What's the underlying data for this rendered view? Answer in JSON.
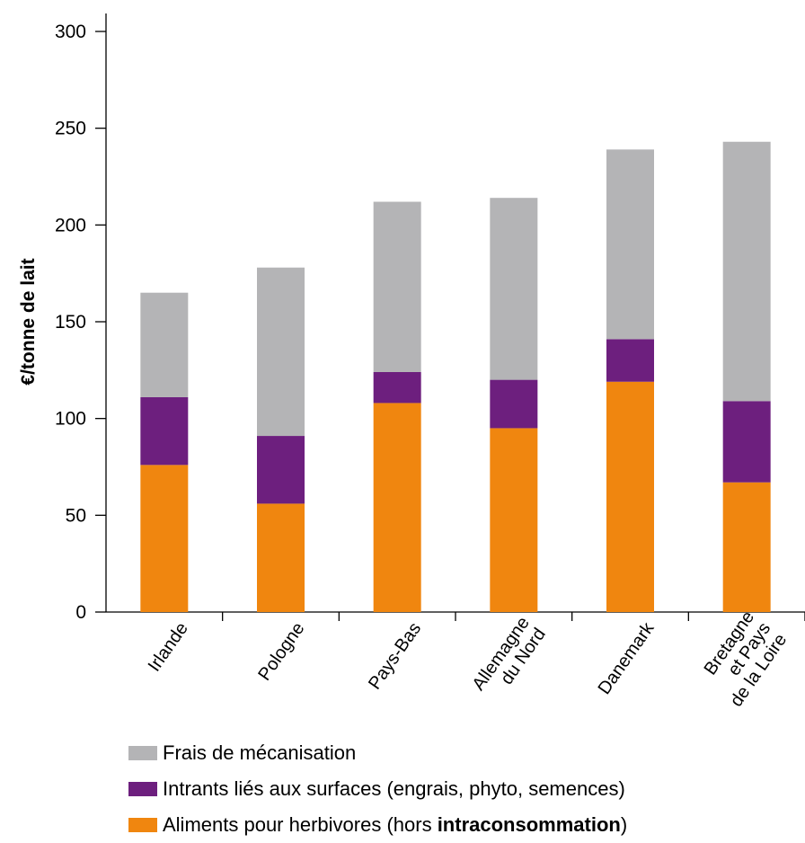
{
  "chart_data": {
    "type": "bar",
    "stacked": true,
    "ylabel": "€/tonne de lait",
    "ylim": [
      0,
      300
    ],
    "yticks": [
      0,
      50,
      100,
      150,
      200,
      250,
      300
    ],
    "categories": [
      [
        "Irlande"
      ],
      [
        "Pologne"
      ],
      [
        "Pays-Bas"
      ],
      [
        "Allemagne",
        "du Nord"
      ],
      [
        "Danemark"
      ],
      [
        "Bretagne",
        "et Pays",
        "de la Loire"
      ]
    ],
    "series": [
      {
        "name": "Aliments pour herbivores (hors intraconsommation)",
        "color": "#f0860f",
        "values": [
          76,
          56,
          108,
          95,
          119,
          67
        ]
      },
      {
        "name": "Intrants liés aux surfaces (engrais, phyto, semences)",
        "color": "#6d1f7e",
        "values": [
          35,
          35,
          16,
          25,
          22,
          42
        ]
      },
      {
        "name": "Frais de mécanisation",
        "color": "#b4b4b6",
        "values": [
          54,
          87,
          88,
          94,
          98,
          134
        ]
      }
    ],
    "legend_placement": "bottom"
  },
  "legend": [
    {
      "name": "Frais de mécanisation",
      "color": "#b4b4b6",
      "text": "Frais de mécanisation",
      "bold": ""
    },
    {
      "name": "Intrants liés aux surfaces (engrais, phyto, semences)",
      "color": "#6d1f7e",
      "text": "Intrants liés aux surfaces (engrais, phyto, semences)",
      "bold": ""
    },
    {
      "name": "Aliments pour herbivores (hors intraconsommation)",
      "color": "#f0860f",
      "text": "Aliments pour herbivores (hors ",
      "bold": "intraconsommation",
      "suffix": ")"
    }
  ]
}
